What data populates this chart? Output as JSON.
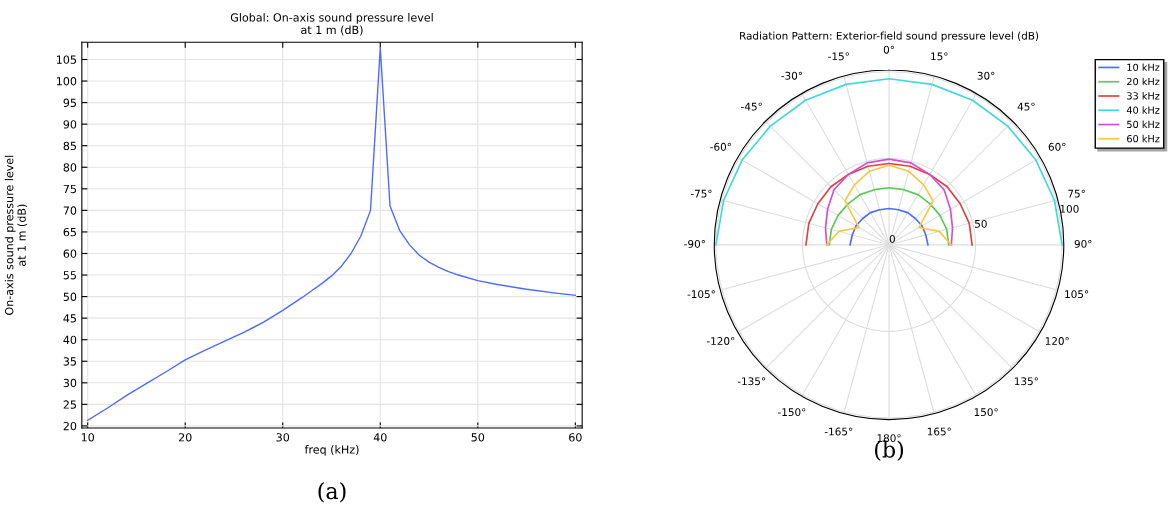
{
  "chart_data": [
    {
      "type": "line",
      "title": "Global: On-axis sound pressure level\nat 1 m (dB)",
      "xlabel": "freq (kHz)",
      "ylabel": "On-axis sound pressure level\nat 1 m (dB)",
      "x": [
        10,
        12,
        14,
        16,
        18,
        20,
        22,
        24,
        26,
        28,
        30,
        32,
        33,
        34,
        35,
        36,
        37,
        38,
        39,
        40,
        41,
        42,
        43,
        44,
        45,
        46,
        47,
        48,
        50,
        52,
        55,
        58,
        60
      ],
      "series": [
        {
          "color": "#4d6bfe",
          "values": [
            21.3,
            24.1,
            27.1,
            29.8,
            32.5,
            35.3,
            37.5,
            39.6,
            41.7,
            44.0,
            46.8,
            49.8,
            51.4,
            53.0,
            54.8,
            57.0,
            60.0,
            64.0,
            70.0,
            107.7,
            71.0,
            65.3,
            62.0,
            59.6,
            58.0,
            56.8,
            55.8,
            55.0,
            53.7,
            52.8,
            51.7,
            50.8,
            50.3
          ]
        }
      ],
      "xlim": [
        9.4,
        60.7
      ],
      "ylim": [
        19.5,
        109
      ],
      "xticks": [
        10,
        20,
        30,
        40,
        50,
        60
      ],
      "yticks": [
        20,
        25,
        30,
        35,
        40,
        45,
        50,
        55,
        60,
        65,
        70,
        75,
        80,
        85,
        90,
        95,
        100,
        105
      ],
      "grid": true,
      "legend": false,
      "annotations": [
        "(a)"
      ]
    },
    {
      "type": "radar",
      "title": "Radiation Pattern: Exterior-field sound pressure level (dB)",
      "categories": [
        "0°",
        "15°",
        "30°",
        "45°",
        "60°",
        "75°",
        "90°",
        "105°",
        "120°",
        "135°",
        "150°",
        "165°",
        "180°",
        "-165°",
        "-150°",
        "-135°",
        "-120°",
        "-105°",
        "-90°",
        "-75°",
        "-60°",
        "-45°",
        "-30°",
        "-15°"
      ],
      "series": [
        {
          "name": "10 kHz",
          "color": "#4d6bfe",
          "values": [
            21,
            21,
            21.5,
            21.5,
            22,
            22,
            22.5,
            null,
            null,
            null,
            null,
            null,
            null,
            null,
            null,
            null,
            null,
            null,
            22.5,
            22,
            22,
            21.5,
            21.5,
            21
          ]
        },
        {
          "name": "20 kHz",
          "color": "#5cc85c",
          "values": [
            33,
            33,
            33.5,
            33.5,
            34,
            34.5,
            34.5,
            null,
            null,
            null,
            null,
            null,
            null,
            null,
            null,
            null,
            null,
            null,
            34.5,
            34.5,
            34,
            33.5,
            33.5,
            33
          ]
        },
        {
          "name": "33 kHz",
          "color": "#e04040",
          "values": [
            47,
            47,
            47,
            47.5,
            47.5,
            48,
            48,
            null,
            null,
            null,
            null,
            null,
            null,
            null,
            null,
            null,
            null,
            null,
            48,
            48,
            47.5,
            47.5,
            47,
            47
          ]
        },
        {
          "name": "40 kHz",
          "color": "#40d8d8",
          "values": [
            96,
            96,
            96.5,
            97,
            98,
            99,
            100,
            null,
            null,
            null,
            null,
            null,
            null,
            null,
            null,
            null,
            null,
            null,
            100,
            99,
            98,
            97,
            96.5,
            96
          ]
        },
        {
          "name": "50 kHz",
          "color": "#d050d0",
          "values": [
            49.5,
            49,
            47,
            45,
            41,
            38,
            36,
            null,
            null,
            null,
            null,
            null,
            null,
            null,
            null,
            null,
            null,
            null,
            36,
            38,
            41,
            45,
            47,
            49
          ]
        },
        {
          "name": "60 kHz",
          "color": "#f8c840",
          "values": [
            46,
            44,
            40,
            36,
            20,
            30,
            36,
            null,
            null,
            null,
            null,
            null,
            null,
            null,
            null,
            null,
            null,
            null,
            36,
            30,
            20,
            36,
            40,
            44
          ]
        }
      ],
      "ylim": [
        0,
        101
      ],
      "yticks": [
        0,
        50,
        100
      ],
      "grid": true,
      "legend": "top right",
      "annotations": [
        "(b)"
      ]
    }
  ]
}
